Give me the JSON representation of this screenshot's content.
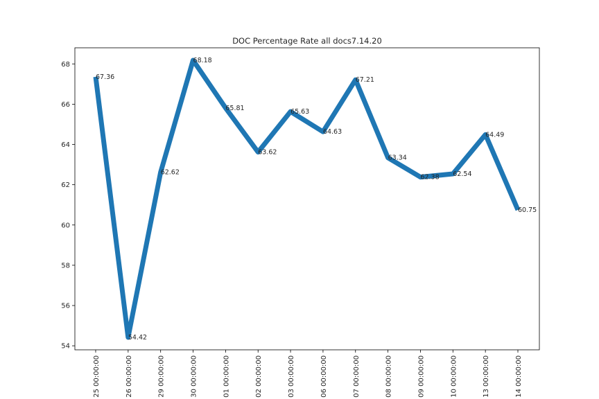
{
  "chart_data": {
    "type": "line",
    "title": "DOC Percentage Rate all docs7.14.20",
    "xlabel": "",
    "ylabel": "",
    "categories": [
      "25 00:00:00",
      "26 00:00:00",
      "29 00:00:00",
      "30 00:00:00",
      "01 00:00:00",
      "02 00:00:00",
      "03 00:00:00",
      "06 00:00:00",
      "07 00:00:00",
      "08 00:00:00",
      "09 00:00:00",
      "10 00:00:00",
      "13 00:00:00",
      "14 00:00:00"
    ],
    "values": [
      67.36,
      54.42,
      62.62,
      68.18,
      65.81,
      63.62,
      65.63,
      64.63,
      67.21,
      63.34,
      62.38,
      62.54,
      64.49,
      60.75
    ],
    "data_labels": [
      "67.36",
      "54.42",
      "62.62",
      "68.18",
      "65.81",
      "63.62",
      "65.63",
      "64.63",
      "67.21",
      "63.34",
      "62.38",
      "62.54",
      "64.49",
      "60.75"
    ],
    "yticks": [
      54,
      56,
      58,
      60,
      62,
      64,
      66,
      68
    ],
    "ylim": [
      53.8,
      68.8
    ],
    "line_color": "#1f77b4",
    "grid": false,
    "legend": "none"
  }
}
